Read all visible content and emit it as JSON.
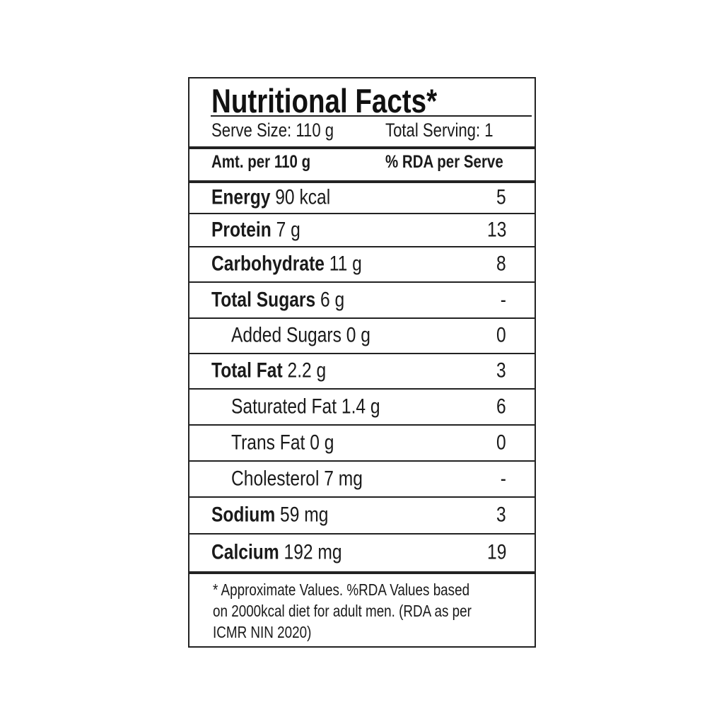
{
  "title": "Nutritional Facts*",
  "serve_size": "Serve Size: 110 g",
  "total_serving": "Total Serving: 1",
  "header": {
    "amount": "Amt. per 110 g",
    "rda": "% RDA per Serve"
  },
  "rows": [
    {
      "name": "Energy",
      "amount": "90 kcal",
      "rda": "5",
      "bold": true
    },
    {
      "name": "Protein",
      "amount": "7 g",
      "rda": "13",
      "bold": true
    },
    {
      "name": "Carbohydrate",
      "amount": "11 g",
      "rda": "8",
      "bold": true
    },
    {
      "name": "Total Sugars",
      "amount": "6 g",
      "rda": "-",
      "bold": true
    },
    {
      "name": "Added Sugars",
      "amount": "0 g",
      "rda": "0",
      "bold": false
    },
    {
      "name": "Total Fat",
      "amount": "2.2 g",
      "rda": "3",
      "bold": true
    },
    {
      "name": "Saturated Fat",
      "amount": "1.4 g",
      "rda": "6",
      "bold": false
    },
    {
      "name": "Trans Fat",
      "amount": "0 g",
      "rda": "0",
      "bold": false
    },
    {
      "name": "Cholesterol",
      "amount": "7 mg",
      "rda": "-",
      "bold": false
    },
    {
      "name": "Sodium",
      "amount": "59 mg",
      "rda": "3",
      "bold": true
    },
    {
      "name": "Calcium",
      "amount": "192 mg",
      "rda": "19",
      "bold": true
    }
  ],
  "footnote": [
    "* Approximate Values. %RDA Values based",
    "on 2000kcal diet for adult men. (RDA as per",
    "ICMR NIN 2020)"
  ]
}
